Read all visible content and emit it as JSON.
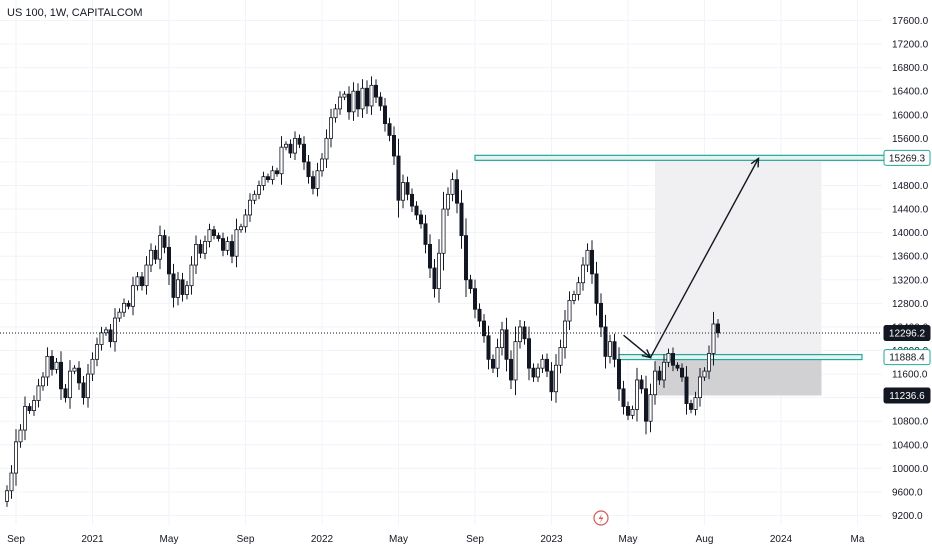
{
  "chart_data": {
    "type": "candlestick",
    "title": "US 100, 1W, CAPITALCOM",
    "colors": {
      "up_body": "#ffffff",
      "down_body": "#131722",
      "wick": "#131722",
      "grid": "#f0f3fa",
      "axis_text": "#131722",
      "zone_line": "#26a69a",
      "zone_fill": "#e6f4f1",
      "target_fill": "#f0f0f2",
      "stop_fill": "#d1d1d4",
      "label_bg": "#131722",
      "label_text": "#ffffff",
      "arrow": "#131722"
    },
    "y_axis": {
      "min": 9000,
      "max": 17800,
      "ticks": [
        "9200.0",
        "9600.0",
        "10000.0",
        "10400.0",
        "10800.0",
        "11200.0",
        "11600.0",
        "12000.0",
        "12400.0",
        "12800.0",
        "13200.0",
        "13600.0",
        "14000.0",
        "14400.0",
        "14800.0",
        "15200.0",
        "15600.0",
        "16000.0",
        "16400.0",
        "16800.0",
        "17200.0",
        "17600.0"
      ]
    },
    "x_axis": {
      "labels": [
        "Sep",
        "2021",
        "May",
        "Sep",
        "2022",
        "May",
        "Sep",
        "2023",
        "May",
        "Aug",
        "2024",
        "Ma"
      ],
      "label_bars": [
        2,
        19,
        36,
        53,
        70,
        87,
        104,
        121,
        138,
        155,
        172,
        189
      ]
    },
    "last_price": 12296.2,
    "price_labels": [
      {
        "value": 15269.3,
        "text": "15269.3",
        "style": "zone"
      },
      {
        "value": 12296.2,
        "text": "12296.2",
        "style": "dark"
      },
      {
        "value": 11888.4,
        "text": "11888.4",
        "style": "zone"
      },
      {
        "value": 11236.6,
        "text": "11236.6",
        "style": "dark"
      }
    ],
    "zones": [
      {
        "name": "resistance",
        "value": 15269.3,
        "bar_start": 104,
        "bar_end": 195
      },
      {
        "name": "support",
        "value": 11888.4,
        "bar_start": 136,
        "bar_end": 190
      }
    ],
    "position": {
      "entry": 11888.4,
      "target": 15269.3,
      "stop": 11236.6,
      "bar_start": 144,
      "bar_end": 181
    },
    "projection_path": [
      {
        "bar": 137,
        "price": 12260
      },
      {
        "bar": 143,
        "price": 11880
      },
      {
        "bar": 167,
        "price": 15260
      }
    ],
    "closes": [
      9620,
      9920,
      10450,
      10650,
      11050,
      10980,
      11150,
      11400,
      11550,
      11900,
      11680,
      11800,
      11350,
      11200,
      11650,
      11700,
      11450,
      11200,
      11600,
      11850,
      12100,
      12300,
      12350,
      12150,
      12550,
      12650,
      12800,
      12750,
      13100,
      13250,
      13100,
      13450,
      13700,
      13550,
      13950,
      13750,
      13300,
      12900,
      13200,
      12950,
      13100,
      13450,
      13800,
      13650,
      13850,
      14050,
      13950,
      13900,
      13700,
      13850,
      13600,
      14050,
      14100,
      14300,
      14550,
      14650,
      14800,
      14950,
      14900,
      15050,
      15000,
      15450,
      15500,
      15350,
      15600,
      15500,
      15200,
      14950,
      14750,
      15050,
      15250,
      15600,
      15950,
      16100,
      16300,
      16350,
      16050,
      16400,
      16100,
      16450,
      16150,
      16500,
      16300,
      16150,
      15850,
      15650,
      15300,
      14550,
      14850,
      14650,
      14450,
      14300,
      14150,
      13800,
      13400,
      13050,
      13650,
      14400,
      14650,
      14900,
      14500,
      13950,
      13200,
      13050,
      12700,
      12500,
      12250,
      11850,
      11700,
      12050,
      12350,
      11850,
      11500,
      12150,
      12400,
      12200,
      11700,
      11550,
      11700,
      11850,
      11650,
      11300,
      11750,
      12050,
      12500,
      12850,
      12950,
      13150,
      13450,
      13700,
      13300,
      12800,
      12400,
      11900,
      12150,
      11850,
      11350,
      11050,
      10900,
      11000,
      11500,
      11350,
      10800,
      11250,
      11650,
      11500,
      11800,
      11950,
      11750,
      11700,
      11550,
      11100,
      11000,
      11200,
      11550,
      11650,
      11950,
      12450,
      12300
    ]
  }
}
